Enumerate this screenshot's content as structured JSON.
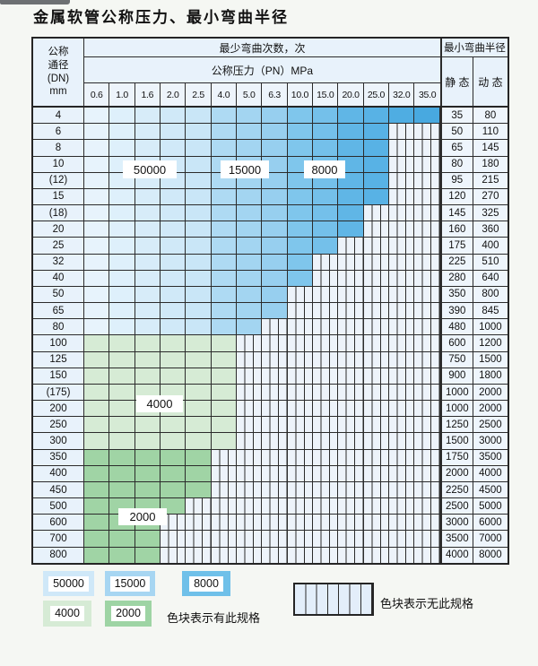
{
  "title": "金属软管公称压力、最小弯曲半径",
  "table": {
    "dn_header": [
      "公称",
      "通径",
      "(DN)",
      "mm"
    ],
    "bend_cycles_header": "最少弯曲次数，次",
    "pressure_header": "公称压力（PN）MPa",
    "pressure_columns": [
      "0.6",
      "1.0",
      "1.6",
      "2.0",
      "2.5",
      "4.0",
      "5.0",
      "6.3",
      "10.0",
      "15.0",
      "20.0",
      "25.0",
      "32.0",
      "35.0"
    ],
    "bend_radius_header": "最小弯曲半径",
    "static_header": "静 态",
    "dynamic_header": "动 态",
    "rows": [
      {
        "dn": "4",
        "colored": 14,
        "zone": "blue",
        "static": "35",
        "dynamic": "80"
      },
      {
        "dn": "6",
        "colored": 12,
        "zone": "blue",
        "static": "50",
        "dynamic": "110"
      },
      {
        "dn": "8",
        "colored": 12,
        "zone": "blue",
        "static": "65",
        "dynamic": "145"
      },
      {
        "dn": "10",
        "colored": 12,
        "zone": "blue",
        "static": "80",
        "dynamic": "180"
      },
      {
        "dn": "(12)",
        "colored": 12,
        "zone": "blue",
        "static": "95",
        "dynamic": "215"
      },
      {
        "dn": "15",
        "colored": 12,
        "zone": "blue",
        "static": "120",
        "dynamic": "270"
      },
      {
        "dn": "(18)",
        "colored": 11,
        "zone": "blue",
        "static": "145",
        "dynamic": "325"
      },
      {
        "dn": "20",
        "colored": 11,
        "zone": "blue",
        "static": "160",
        "dynamic": "360"
      },
      {
        "dn": "25",
        "colored": 10,
        "zone": "blue",
        "static": "175",
        "dynamic": "400"
      },
      {
        "dn": "32",
        "colored": 9,
        "zone": "blue",
        "static": "225",
        "dynamic": "510"
      },
      {
        "dn": "40",
        "colored": 9,
        "zone": "blue",
        "static": "280",
        "dynamic": "640"
      },
      {
        "dn": "50",
        "colored": 8,
        "zone": "blue",
        "static": "350",
        "dynamic": "800"
      },
      {
        "dn": "65",
        "colored": 8,
        "zone": "blue",
        "static": "390",
        "dynamic": "845"
      },
      {
        "dn": "80",
        "colored": 7,
        "zone": "blue",
        "static": "480",
        "dynamic": "1000"
      },
      {
        "dn": "100",
        "colored": 6,
        "zone": "green_light",
        "static": "600",
        "dynamic": "1200"
      },
      {
        "dn": "125",
        "colored": 6,
        "zone": "green_light",
        "static": "750",
        "dynamic": "1500"
      },
      {
        "dn": "150",
        "colored": 6,
        "zone": "green_light",
        "static": "900",
        "dynamic": "1800"
      },
      {
        "dn": "(175)",
        "colored": 6,
        "zone": "green_light",
        "static": "1000",
        "dynamic": "2000"
      },
      {
        "dn": "200",
        "colored": 6,
        "zone": "green_light",
        "static": "1000",
        "dynamic": "2000"
      },
      {
        "dn": "250",
        "colored": 6,
        "zone": "green_light",
        "static": "1250",
        "dynamic": "2500"
      },
      {
        "dn": "300",
        "colored": 6,
        "zone": "green_light",
        "static": "1500",
        "dynamic": "3000"
      },
      {
        "dn": "350",
        "colored": 5,
        "zone": "green_dark",
        "static": "1750",
        "dynamic": "3500"
      },
      {
        "dn": "400",
        "colored": 5,
        "zone": "green_dark",
        "static": "2000",
        "dynamic": "4000"
      },
      {
        "dn": "450",
        "colored": 5,
        "zone": "green_dark",
        "static": "2250",
        "dynamic": "4500"
      },
      {
        "dn": "500",
        "colored": 4,
        "zone": "green_dark",
        "static": "2500",
        "dynamic": "5000"
      },
      {
        "dn": "600",
        "colored": 3,
        "zone": "green_dark",
        "static": "3000",
        "dynamic": "6000"
      },
      {
        "dn": "700",
        "colored": 3,
        "zone": "green_dark",
        "static": "3500",
        "dynamic": "7000"
      },
      {
        "dn": "800",
        "colored": 3,
        "zone": "green_dark",
        "static": "4000",
        "dynamic": "8000"
      }
    ]
  },
  "zone_labels": [
    {
      "text": "50000"
    },
    {
      "text": "15000"
    },
    {
      "text": "8000"
    },
    {
      "text": "4000"
    },
    {
      "text": "2000"
    }
  ],
  "legend": {
    "swatches": [
      {
        "label": "50000",
        "color": "#cfe8f8"
      },
      {
        "label": "15000",
        "color": "#a7d6f2"
      },
      {
        "label": "8000",
        "color": "#6fc0e9"
      },
      {
        "label": "4000",
        "color": "#d6ebd5"
      },
      {
        "label": "2000",
        "color": "#9ed4a4"
      }
    ],
    "has_spec_text": "色块表示有此规格",
    "no_spec_text": "色块表示无此规格"
  },
  "colors": {
    "blue_shades": [
      "#e7f3fc",
      "#def0fb",
      "#d7ecf9",
      "#d0e9f8",
      "#c9e6f7",
      "#aedaf3",
      "#a3d5f1",
      "#97cfef",
      "#7fc6ec",
      "#74c0ea",
      "#60b6e6",
      "#58b2e5",
      "#4fade2",
      "#48a9e0"
    ],
    "green_light": "#d6ebd5",
    "green_dark": "#a0d4a5",
    "stripe_bg": "#edf3fa",
    "grid": "#2b2b2b",
    "header_bg": "#e8f2fb",
    "value_bg": "#eef5fc"
  }
}
